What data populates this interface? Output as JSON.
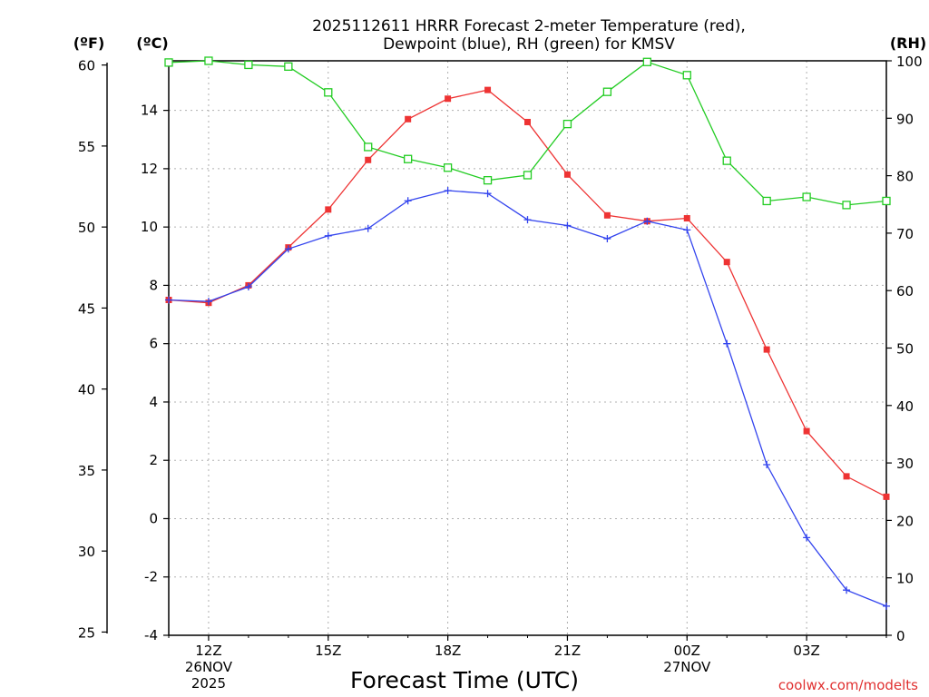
{
  "chart_data": {
    "type": "line",
    "title_line1": "2025112611 HRRR Forecast 2-meter Temperature (red),",
    "title_line2": "Dewpoint (blue), RH (green) for KMSV",
    "xlabel": "Forecast Time (UTC)",
    "units": {
      "left_f": "(ºF)",
      "left_c": "(ºC)",
      "right_rh": "(RH)"
    },
    "x": [
      11,
      12,
      13,
      14,
      15,
      16,
      17,
      18,
      19,
      20,
      21,
      22,
      23,
      24,
      25,
      26,
      27,
      28,
      29
    ],
    "x_range": [
      11,
      29
    ],
    "x_ticks": [
      {
        "x": 12,
        "lines": [
          "12Z",
          "26NOV",
          "2025"
        ]
      },
      {
        "x": 15,
        "lines": [
          "15Z"
        ]
      },
      {
        "x": 18,
        "lines": [
          "18Z"
        ]
      },
      {
        "x": 21,
        "lines": [
          "21Z"
        ]
      },
      {
        "x": 24,
        "lines": [
          "00Z",
          "27NOV"
        ]
      },
      {
        "x": 27,
        "lines": [
          "03Z"
        ]
      }
    ],
    "celsius_axis": {
      "range": [
        -4,
        15.7
      ],
      "ticks": [
        "-4",
        "-2",
        "0",
        "2",
        "4",
        "6",
        "8",
        "10",
        "12",
        "14"
      ]
    },
    "fahrenheit_axis": {
      "ticks": [
        "25",
        "30",
        "35",
        "40",
        "45",
        "50",
        "55",
        "60"
      ]
    },
    "rh_axis": {
      "range": [
        0,
        100
      ],
      "ticks": [
        "0",
        "10",
        "20",
        "30",
        "40",
        "50",
        "60",
        "70",
        "80",
        "90",
        "100"
      ]
    },
    "series": [
      {
        "name": "Temperature",
        "color": "#ee3333",
        "marker": "filled-square",
        "axis": "celsius",
        "values": [
          7.5,
          7.4,
          8.0,
          9.3,
          10.6,
          12.3,
          13.7,
          14.4,
          14.7,
          13.6,
          11.8,
          10.4,
          10.2,
          10.3,
          8.8,
          5.8,
          3.0,
          1.45,
          0.75
        ]
      },
      {
        "name": "Dewpoint",
        "color": "#3344ee",
        "marker": "plus",
        "axis": "celsius",
        "values": [
          7.5,
          7.45,
          7.95,
          9.25,
          9.7,
          9.95,
          10.9,
          11.25,
          11.15,
          10.25,
          10.05,
          9.6,
          10.2,
          9.9,
          6.0,
          1.85,
          -0.65,
          -2.45,
          -3.0
        ]
      },
      {
        "name": "RH",
        "color": "#22cc22",
        "marker": "open-square",
        "axis": "rh",
        "values": [
          99.7,
          100.0,
          99.3,
          99.0,
          94.5,
          85.0,
          82.9,
          81.4,
          79.2,
          80.1,
          89.0,
          94.6,
          99.8,
          97.5,
          82.6,
          75.6,
          76.3,
          74.9,
          75.6
        ]
      }
    ],
    "grid": true,
    "watermark": "coolwx.com/modelts"
  }
}
